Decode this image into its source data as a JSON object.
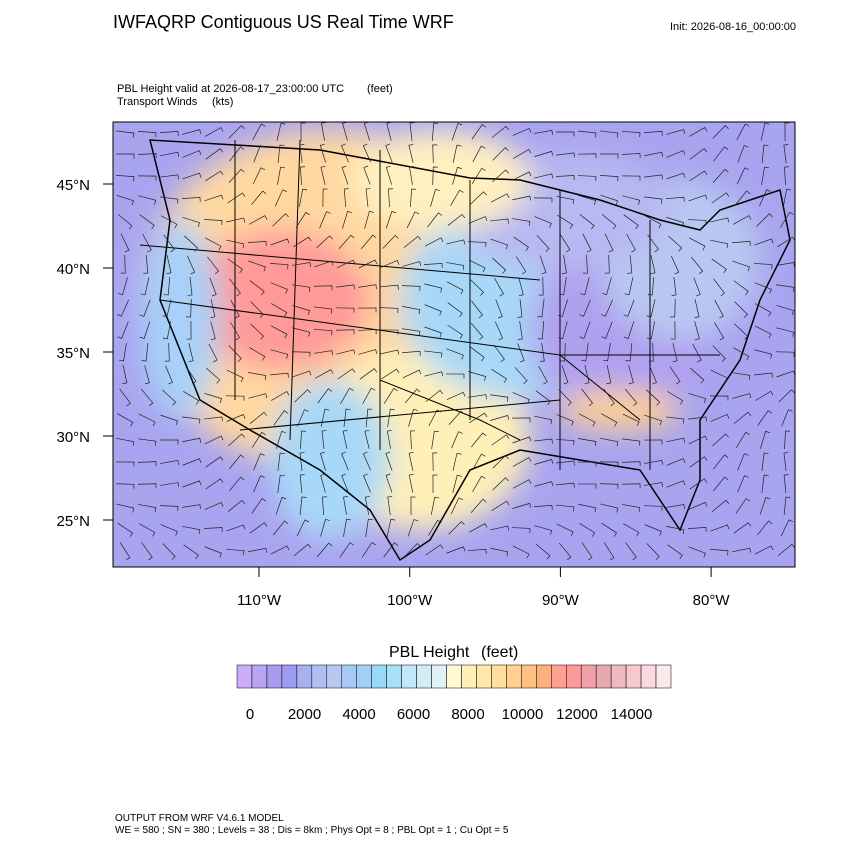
{
  "header": {
    "title": "IWFAQRP Contiguous US Real Time WRF",
    "init": "Init: 2026-08-16_00:00:00"
  },
  "map": {
    "field_label": "PBL Height valid at 2026-08-17_23:00:00 UTC",
    "field_units": "(feet)",
    "wind_label": "Transport Winds",
    "wind_units": "(kts)",
    "lat_labels": [
      "45°N",
      "40°N",
      "35°N",
      "30°N",
      "25°N"
    ],
    "lon_labels": [
      "110°W",
      "100°W",
      "90°W",
      "80°W"
    ]
  },
  "colorbar": {
    "title": "PBL Height",
    "units": "(feet)",
    "labels": [
      0,
      2000,
      4000,
      6000,
      8000,
      10000,
      12000,
      14000
    ],
    "colors": [
      "#c9aef5",
      "#b9a4f2",
      "#a99cf0",
      "#9d9cf0",
      "#a8b0f0",
      "#b0bef2",
      "#b8c8f2",
      "#a8c8f8",
      "#a0d0f8",
      "#98d8f8",
      "#a8e0f8",
      "#c0e8fa",
      "#d0eef8",
      "#e0f2f8",
      "#fff8d0",
      "#fff0b8",
      "#ffe8a8",
      "#ffe0a0",
      "#ffd090",
      "#ffc080",
      "#ffb080",
      "#ffa090",
      "#ff9898",
      "#f0a0a8",
      "#e8a8b0",
      "#f0b8c0",
      "#f8c8d0",
      "#fcd8e0",
      "#fde8ec"
    ]
  },
  "footer": {
    "line1": "OUTPUT FROM WRF V4.6.1 MODEL",
    "line2": "WE = 580 ; SN = 380 ; Levels = 38 ; Dis = 8km ; Phys Opt = 8 ; PBL Opt = 1 ; Cu Opt = 5"
  }
}
